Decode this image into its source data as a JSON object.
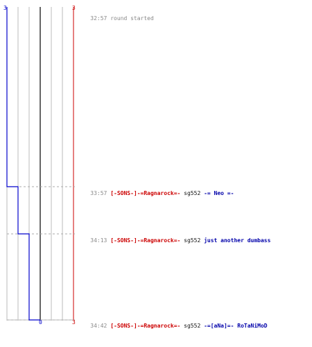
{
  "chart_data": {
    "type": "line",
    "score_scale": {
      "left_label": "3",
      "top_right_label": "3",
      "bottom_zero_label": "0",
      "bottom_right_label": "3"
    },
    "lines": {
      "blue_color": "#0000cc",
      "red_color": "#cc0000",
      "grid_color": "#bbbbbb",
      "center_color": "#666666"
    },
    "steps": [
      3,
      2,
      1,
      0
    ]
  },
  "events": [
    {
      "time": "32:57",
      "plain": "round started"
    },
    {
      "time": "33:57",
      "killer": "[-SONS-]-=Ragnarock=-",
      "weapon": "sg552",
      "victim": "-= Neo =-"
    },
    {
      "time": "34:13",
      "killer": "[-SONS-]-=Ragnarock=-",
      "weapon": "sg552",
      "victim": "just another dumbass"
    },
    {
      "time": "34:42",
      "killer": "[-SONS-]-=Ragnarock=-",
      "weapon": "sg552",
      "victim": "-=[aNa]=- RoTaNiMoD"
    }
  ]
}
